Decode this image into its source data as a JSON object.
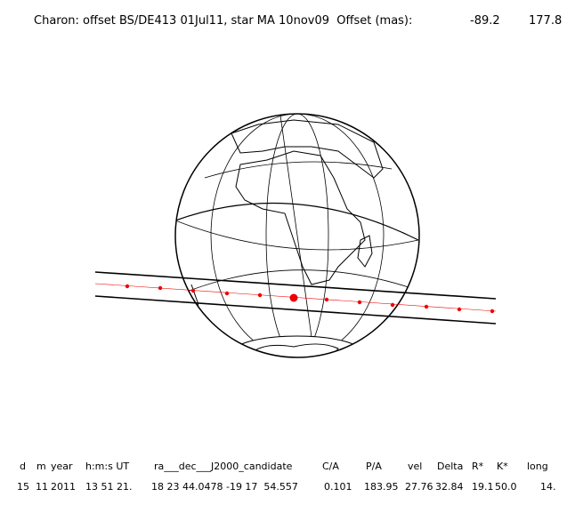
{
  "header": {
    "title": "Charon: offset BS/DE413 01Jul11, star MA 10nov09  Offset (mas):",
    "offset_ra": "-89.2",
    "offset_dec": "177.8"
  },
  "table": {
    "columns": [
      "d",
      "m",
      "year",
      "h:m:s UT",
      "ra___dec___J2000_candidate",
      "C/A",
      "P/A",
      "vel",
      "Delta",
      "R*",
      "K*",
      "long"
    ],
    "row": [
      "15",
      "11",
      "2011",
      "13 51 21.",
      "18 23 44.0478 -19 17  54.557",
      "0.101",
      "183.95",
      "27.76",
      "32.84",
      "19.1",
      "50.0",
      "14."
    ]
  }
}
